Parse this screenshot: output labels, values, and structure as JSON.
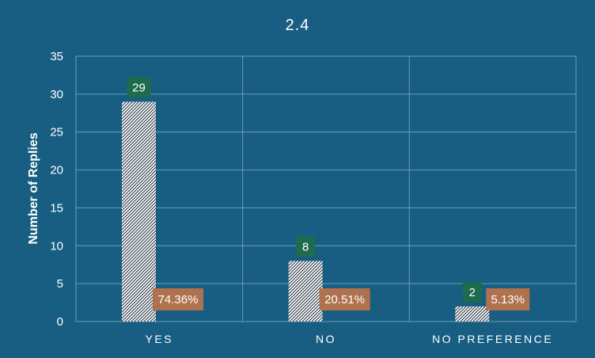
{
  "chart_data": {
    "type": "bar",
    "title": "2.4",
    "xlabel": "",
    "ylabel": "Number of Replies",
    "ylim": [
      0,
      35
    ],
    "yticks": [
      0,
      5,
      10,
      15,
      20,
      25,
      30,
      35
    ],
    "categories": [
      "YES",
      "NO",
      "NO PREFERENCE"
    ],
    "values": [
      29,
      8,
      2
    ],
    "value_labels": [
      "29",
      "8",
      "2"
    ],
    "percent_labels": [
      "74.36%",
      "20.51%",
      "5.13%"
    ],
    "grid": true,
    "legend": "none"
  },
  "colors": {
    "background": "#175E82",
    "gridline": "#6E9DB8",
    "bar_fill": "#FFFFFF",
    "bar_hatch": "#1A2A3A",
    "count_label_bg": "#1E6B4E",
    "percent_label_bg": "#B0714E",
    "text": "#FFFFFF"
  }
}
